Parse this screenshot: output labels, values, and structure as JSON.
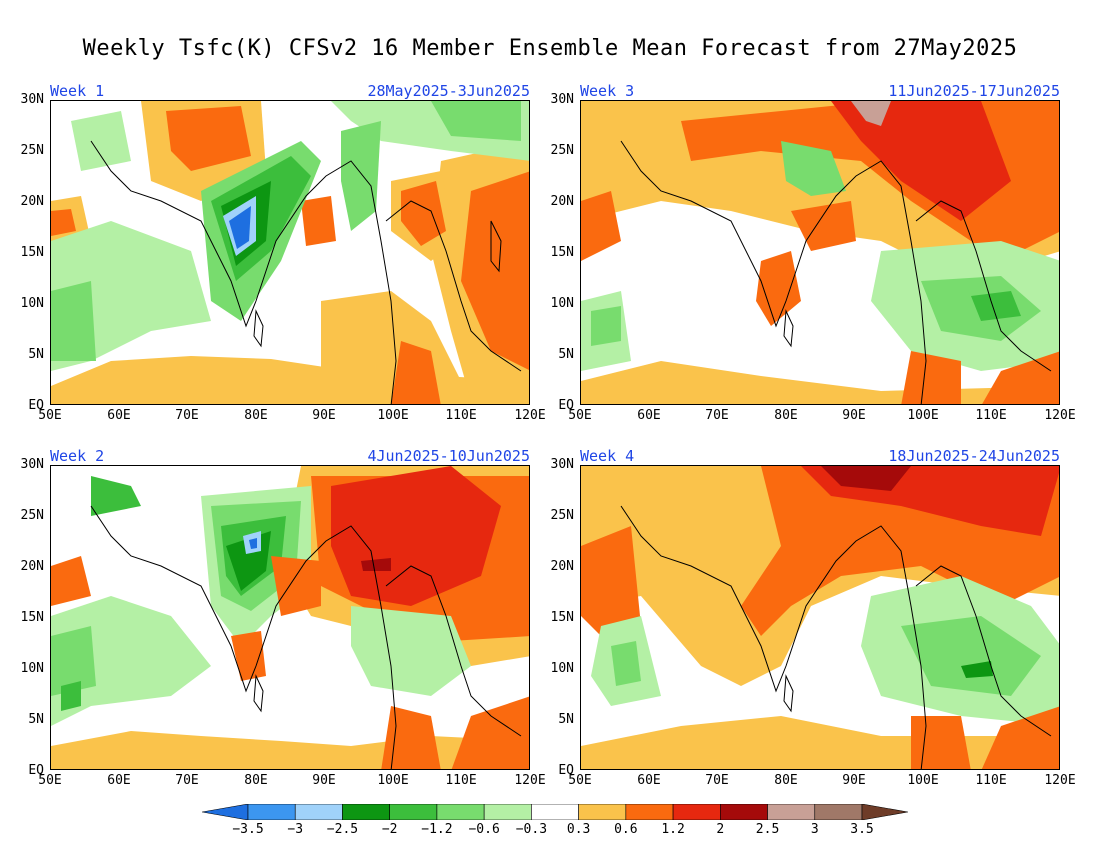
{
  "title": "Weekly Tsfc(K) CFSv2 16 Member Ensemble Mean Forecast from 27May2025",
  "axes": {
    "lat_labels": [
      "30N",
      "25N",
      "20N",
      "15N",
      "10N",
      "5N",
      "EQ"
    ],
    "lon_labels": [
      "50E",
      "60E",
      "70E",
      "80E",
      "90E",
      "100E",
      "110E",
      "120E"
    ]
  },
  "panels": [
    {
      "week": "Week 1",
      "dates": "28May2025-3Jun2025"
    },
    {
      "week": "Week 3",
      "dates": "11Jun2025-17Jun2025"
    },
    {
      "week": "Week 2",
      "dates": "4Jun2025-10Jun2025"
    },
    {
      "week": "Week 4",
      "dates": "18Jun2025-24Jun2025"
    }
  ],
  "legend": {
    "labels": [
      "-3.5",
      "-3",
      "-2.5",
      "-2",
      "-1.2",
      "-0.6",
      "-0.3",
      "0.3",
      "0.6",
      "1.2",
      "2",
      "2.5",
      "3",
      "3.5"
    ],
    "colors": [
      "#1e6fe0",
      "#3c96f0",
      "#a0d2fa",
      "#0d9612",
      "#3cbe3c",
      "#78dc6e",
      "#b4f0a5",
      "#ffffff",
      "#fac34b",
      "#fa6a0f",
      "#e6280f",
      "#a50a0a",
      "#c8a096",
      "#a07868",
      "#6e3c28"
    ]
  },
  "colors": {
    "accent_label": "#1f45e6",
    "land_outline": "#000000"
  }
}
